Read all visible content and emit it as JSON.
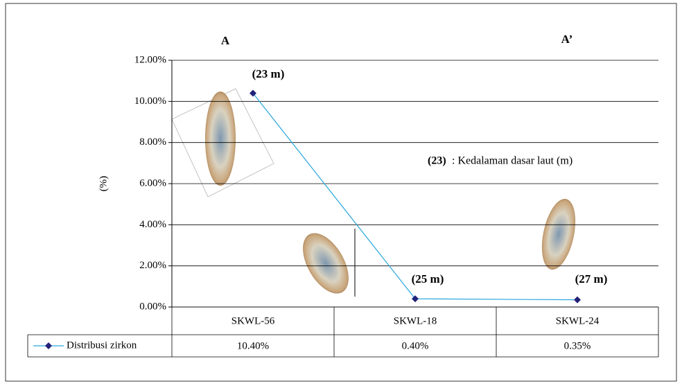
{
  "chart_data": {
    "type": "line",
    "categories": [
      "SKWL-56",
      "SKWL-18",
      "SKWL-24"
    ],
    "series": [
      {
        "name": "Distribusi zirkon",
        "color": "#2aa7dc",
        "marker_color": "#22227a",
        "values": [
          10.4,
          0.4,
          0.35
        ],
        "value_labels": [
          "10.40%",
          "0.40%",
          "0.35%"
        ]
      }
    ],
    "ylabel": "(%)",
    "ylim": [
      0,
      12
    ],
    "yticks": [
      {
        "value": 0,
        "label": "0.00%"
      },
      {
        "value": 2,
        "label": "2.00%"
      },
      {
        "value": 4,
        "label": "4.00%"
      },
      {
        "value": 6,
        "label": "6.00%"
      },
      {
        "value": 8,
        "label": "8.00%"
      },
      {
        "value": 10,
        "label": "10.00%"
      },
      {
        "value": 12,
        "label": "12.00%"
      }
    ],
    "grid": true,
    "section_labels": [
      "A",
      "A’"
    ],
    "point_labels": [
      "(23 m)",
      "(25 m)",
      "(27 m)"
    ],
    "note": {
      "key": "(23)",
      "text": ": Kedalaman dasar laut (m)"
    }
  }
}
